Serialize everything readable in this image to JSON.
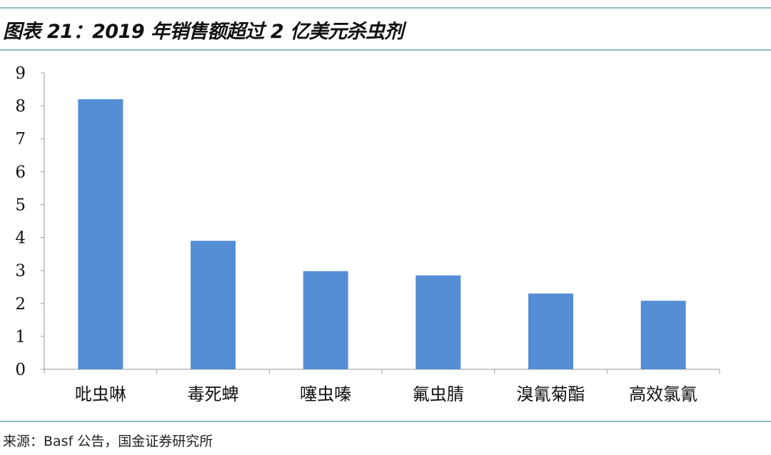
{
  "title": "图表 21：2019 年销售额超过 2 亿美元杀虫剂",
  "source": "来源：Basf 公告，国金证券研究所",
  "colors": {
    "bar": "#558ed5",
    "rule": "#8fbcc4",
    "axis": "#999999"
  },
  "chart_data": {
    "type": "bar",
    "title": "",
    "xlabel": "",
    "ylabel": "",
    "categories": [
      "吡虫啉",
      "毒死蜱",
      "噻虫嗪",
      "氟虫腈",
      "溴氰菊酯",
      "高效氯氰"
    ],
    "values": [
      8.2,
      3.9,
      2.98,
      2.85,
      2.3,
      2.08
    ],
    "ylim": [
      0,
      9
    ],
    "yticks": [
      0,
      1,
      2,
      3,
      4,
      5,
      6,
      7,
      8,
      9
    ],
    "grid": false,
    "legend": "none"
  }
}
